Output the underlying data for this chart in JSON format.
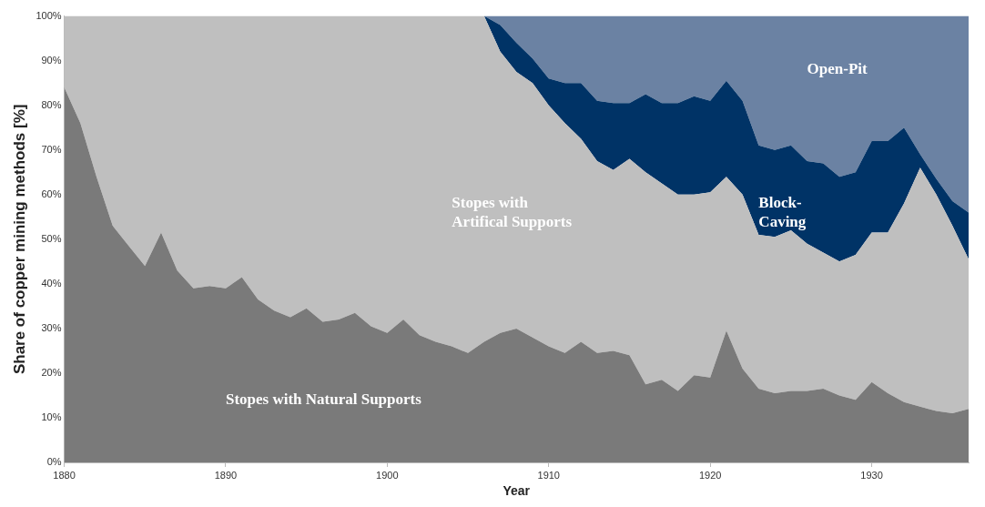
{
  "chart_data": {
    "type": "area",
    "stacked": true,
    "xlabel": "Year",
    "ylabel": "Share of copper mining methods [%]",
    "x": [
      1880,
      1881,
      1882,
      1883,
      1884,
      1885,
      1886,
      1887,
      1888,
      1889,
      1890,
      1891,
      1892,
      1893,
      1894,
      1895,
      1896,
      1897,
      1898,
      1899,
      1900,
      1901,
      1902,
      1903,
      1904,
      1905,
      1906,
      1907,
      1908,
      1909,
      1910,
      1911,
      1912,
      1913,
      1914,
      1915,
      1916,
      1917,
      1918,
      1919,
      1920,
      1921,
      1922,
      1923,
      1924,
      1925,
      1926,
      1927,
      1928,
      1929,
      1930,
      1931,
      1932,
      1933,
      1934,
      1935,
      1936
    ],
    "series": [
      {
        "name": "Stopes with Natural Supports",
        "color": "#7a7a7a",
        "values": [
          84,
          76,
          64,
          53,
          48.5,
          44,
          51.5,
          43,
          39,
          39.5,
          39,
          41.5,
          36.5,
          34,
          32.5,
          34.5,
          31.5,
          32,
          33.5,
          30.5,
          29,
          32,
          28.5,
          27,
          26,
          24.5,
          27,
          29,
          30,
          28,
          26,
          24.5,
          27,
          24.5,
          25,
          24,
          17.5,
          18.5,
          16,
          19.5,
          19,
          29.5,
          21,
          16.5,
          15.5,
          16,
          16,
          16.5,
          15,
          14,
          18,
          15.5,
          13.5,
          12.5,
          11.5,
          11,
          12
        ]
      },
      {
        "name": "Stopes with Artifical Supports",
        "color": "#bfbfbf",
        "values": [
          16,
          24,
          36,
          47,
          51.5,
          56,
          48.5,
          57,
          61,
          60.5,
          61,
          58.5,
          63.5,
          66,
          67.5,
          65.5,
          68.5,
          68,
          66.5,
          69.5,
          71,
          68,
          71.5,
          73,
          74,
          75.5,
          73,
          63,
          57.5,
          57,
          54,
          51.5,
          45.5,
          43,
          40.5,
          44,
          47.5,
          44,
          44,
          40.5,
          41.5,
          34.5,
          39,
          34.5,
          35,
          36,
          33,
          30.5,
          30,
          32.5,
          33.5,
          36,
          44.5,
          53.5,
          48.5,
          42,
          33.5
        ]
      },
      {
        "name": "Block-Caving",
        "color": "#003366",
        "values": [
          null,
          null,
          null,
          null,
          null,
          null,
          null,
          null,
          null,
          null,
          null,
          null,
          null,
          null,
          null,
          null,
          null,
          null,
          null,
          null,
          null,
          null,
          null,
          null,
          null,
          null,
          0,
          6,
          6.5,
          5.5,
          6,
          9,
          12.5,
          13.5,
          15,
          12.5,
          17.5,
          18,
          20.5,
          22,
          20.5,
          21.5,
          21,
          20,
          19.5,
          19,
          18.5,
          20,
          19,
          18.5,
          20.5,
          20.5,
          17,
          3,
          3.5,
          5.5,
          10.5
        ]
      },
      {
        "name": "Open-Pit",
        "color": "#6b82a3",
        "values": [
          null,
          null,
          null,
          null,
          null,
          null,
          null,
          null,
          null,
          null,
          null,
          null,
          null,
          null,
          null,
          null,
          null,
          null,
          null,
          null,
          null,
          null,
          null,
          null,
          null,
          null,
          0,
          2,
          6,
          9.5,
          14,
          15,
          15,
          19,
          19.5,
          19.5,
          17.5,
          19.5,
          19.5,
          18,
          19,
          14.5,
          19,
          29,
          30,
          29,
          32.5,
          33,
          36,
          35,
          28,
          28,
          25,
          31,
          36.5,
          41.5,
          44
        ]
      }
    ],
    "xlim": [
      1880,
      1936
    ],
    "xticks": [
      1880,
      1890,
      1900,
      1910,
      1920,
      1930
    ],
    "ylim": [
      0,
      100
    ],
    "yticks": [
      {
        "value": 0,
        "label": "0%"
      },
      {
        "value": 10,
        "label": "10%"
      },
      {
        "value": 20,
        "label": "20%"
      },
      {
        "value": 30,
        "label": "30%"
      },
      {
        "value": 40,
        "label": "40%"
      },
      {
        "value": 50,
        "label": "50%"
      },
      {
        "value": 60,
        "label": "60%"
      },
      {
        "value": 70,
        "label": "70%"
      },
      {
        "value": 80,
        "label": "80%"
      },
      {
        "value": 90,
        "label": "90%"
      },
      {
        "value": 100,
        "label": "100%"
      }
    ],
    "grid": false,
    "legend": false
  }
}
